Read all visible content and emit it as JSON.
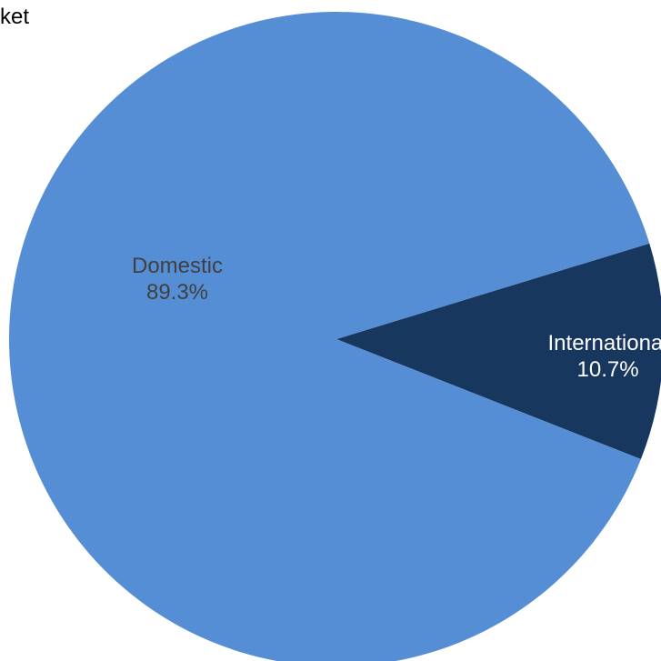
{
  "chart_data": {
    "type": "pie",
    "title_fragment": "ket",
    "slices": [
      {
        "label": "Domestic",
        "value": 89.3,
        "value_label": "89.3%",
        "color": "#558ed5",
        "text_color": "#404040"
      },
      {
        "label": "International",
        "value": 10.7,
        "value_label": "10.7%",
        "color": "#17375e",
        "text_color": "#ffffff"
      }
    ],
    "legend": "none"
  }
}
